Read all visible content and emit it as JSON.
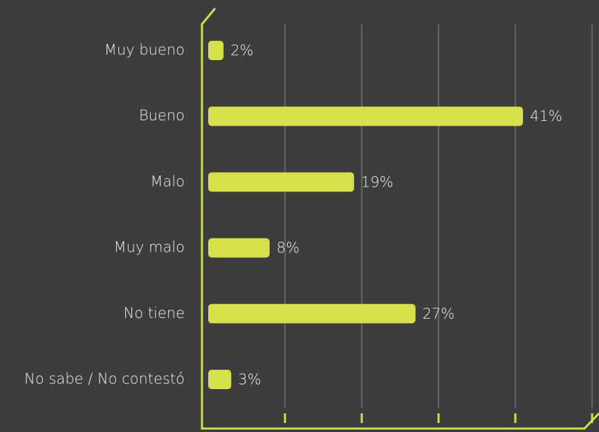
{
  "chart_data": {
    "type": "barh",
    "categories": [
      "Muy bueno",
      "Bueno",
      "Malo",
      "Muy malo",
      "No tiene",
      "No sabe / No contestó"
    ],
    "values": [
      2,
      41,
      19,
      8,
      27,
      3
    ],
    "value_labels": [
      "2%",
      "41%",
      "19%",
      "8%",
      "27%",
      "3%"
    ],
    "color": "#d6e04a",
    "xlim": [
      0,
      50
    ],
    "xticks": [
      10,
      20,
      30,
      40,
      50
    ],
    "grid": true
  }
}
